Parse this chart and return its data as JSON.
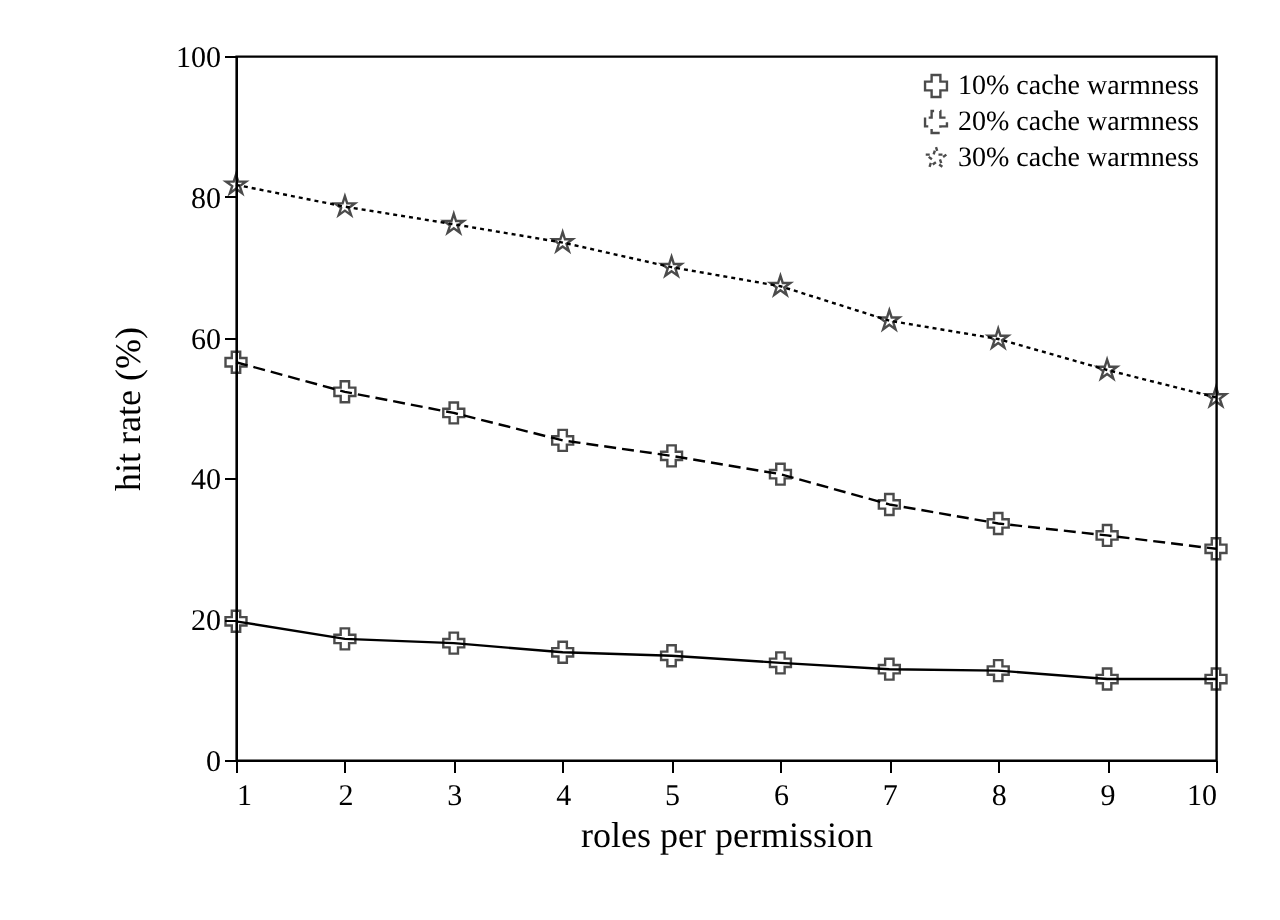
{
  "chart_data": {
    "type": "line",
    "xlabel": "roles per permission",
    "ylabel": "hit rate (%)",
    "x": [
      1,
      2,
      3,
      4,
      5,
      6,
      7,
      8,
      9,
      10
    ],
    "series": [
      {
        "name": "10% cache warmness",
        "color": "#000000",
        "marker": "cross",
        "line_style": "solid",
        "values": [
          19.7,
          17.2,
          16.6,
          15.3,
          14.8,
          13.8,
          12.9,
          12.7,
          11.5,
          11.5
        ]
      },
      {
        "name": "20% cache warmness",
        "color": "#000000",
        "marker": "cross",
        "line_style": "dashed",
        "values": [
          56.5,
          52.3,
          49.3,
          45.4,
          43.2,
          40.6,
          36.3,
          33.6,
          31.9,
          30.0
        ]
      },
      {
        "name": "30% cache warmness",
        "color": "#000000",
        "marker": "star",
        "line_style": "dotted",
        "values": [
          81.7,
          78.6,
          76.1,
          73.5,
          70.0,
          67.3,
          62.4,
          59.8,
          55.4,
          51.5
        ]
      }
    ],
    "xlim": [
      1,
      10
    ],
    "xticks": [
      1,
      2,
      3,
      4,
      5,
      6,
      7,
      8,
      9,
      10
    ],
    "ylim": [
      0,
      100
    ],
    "yticks": [
      0,
      20,
      40,
      60,
      80,
      100
    ],
    "grid": false,
    "legend": "top right"
  }
}
